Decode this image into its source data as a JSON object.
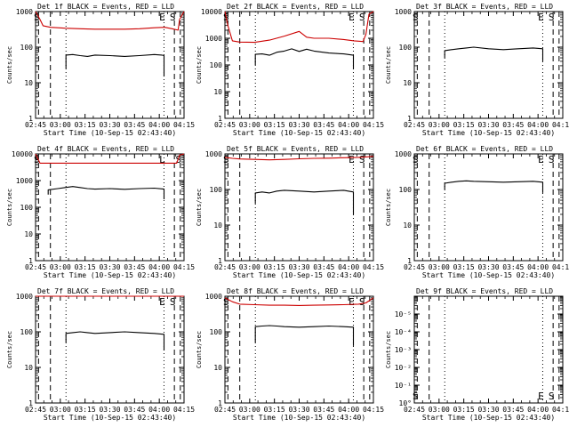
{
  "figure": {
    "background": "#ffffff",
    "axis_color": "#000000"
  },
  "chart_data": [
    {
      "type": "line",
      "title": "Det 1f BLACK = Events, RED = LLD",
      "xlabel": "Start Time (10-Sep-15 02:43:40)",
      "ylabel": "Counts/sec",
      "x_ticks": [
        "02:45",
        "03:00",
        "03:15",
        "03:30",
        "03:45",
        "04:00",
        "04:15"
      ],
      "y_ticks": [
        "1",
        "10",
        "100",
        "1000"
      ],
      "ylim": [
        1,
        1000
      ],
      "y_scale": "log",
      "markers": [
        {
          "label": "S",
          "pos": 0.02,
          "style": "dashed"
        },
        {
          "label": "",
          "pos": 0.1,
          "style": "dashed"
        },
        {
          "label": "",
          "pos": 0.205,
          "style": "dotted"
        },
        {
          "label": "E",
          "pos": 0.865,
          "style": "dotted"
        },
        {
          "label": "S",
          "pos": 0.935,
          "style": "dashed"
        },
        {
          "label": "",
          "pos": 0.975,
          "style": "dashed"
        }
      ],
      "series": [
        {
          "name": "LLD",
          "color": "#cc0000",
          "x": [
            0.0,
            0.03,
            0.05,
            0.1,
            0.2,
            0.3,
            0.4,
            0.5,
            0.6,
            0.7,
            0.8,
            0.87,
            0.92,
            0.96,
            0.97,
            1.0
          ],
          "values": [
            1000,
            600,
            400,
            360,
            340,
            330,
            320,
            320,
            320,
            330,
            350,
            360,
            330,
            300,
            600,
            1000
          ]
        },
        {
          "name": "Events",
          "color": "#000000",
          "x": [
            0.205,
            0.205,
            0.25,
            0.3,
            0.35,
            0.4,
            0.5,
            0.6,
            0.7,
            0.8,
            0.85,
            0.865,
            0.865
          ],
          "values": [
            25,
            60,
            62,
            58,
            55,
            60,
            58,
            55,
            58,
            62,
            60,
            58,
            15
          ]
        }
      ]
    },
    {
      "type": "line",
      "title": "Det 2f BLACK = Events, RED = LLD",
      "xlabel": "Start Time (10-Sep-15 02:43:40)",
      "ylabel": "Counts/sec",
      "x_ticks": [
        "02:45",
        "03:00",
        "03:15",
        "03:30",
        "03:45",
        "04:00",
        "04:15"
      ],
      "y_ticks": [
        "1",
        "10",
        "100",
        "1000",
        "10000"
      ],
      "ylim": [
        1,
        10000
      ],
      "y_scale": "log",
      "markers": [
        {
          "label": "S",
          "pos": 0.02,
          "style": "dashed"
        },
        {
          "label": "",
          "pos": 0.1,
          "style": "dashed"
        },
        {
          "label": "",
          "pos": 0.205,
          "style": "dotted"
        },
        {
          "label": "E",
          "pos": 0.865,
          "style": "dotted"
        },
        {
          "label": "S",
          "pos": 0.935,
          "style": "dashed"
        },
        {
          "label": "",
          "pos": 0.975,
          "style": "dashed"
        }
      ],
      "series": [
        {
          "name": "LLD",
          "color": "#cc0000",
          "x": [
            0.0,
            0.02,
            0.05,
            0.1,
            0.2,
            0.3,
            0.4,
            0.5,
            0.55,
            0.6,
            0.7,
            0.8,
            0.87,
            0.93,
            0.95,
            0.97,
            1.0
          ],
          "values": [
            10000,
            3000,
            800,
            720,
            700,
            850,
            1200,
            1800,
            1100,
            1000,
            1000,
            900,
            800,
            750,
            1400,
            8000,
            10000
          ]
        },
        {
          "name": "Events",
          "color": "#000000",
          "x": [
            0.205,
            0.205,
            0.25,
            0.3,
            0.35,
            0.4,
            0.45,
            0.5,
            0.55,
            0.6,
            0.7,
            0.8,
            0.865,
            0.865
          ],
          "values": [
            100,
            250,
            260,
            230,
            300,
            330,
            400,
            320,
            390,
            330,
            280,
            260,
            230,
            70
          ]
        }
      ]
    },
    {
      "type": "line",
      "title": "Det 3f BLACK = Events, RED = LLD",
      "xlabel": "Start Time (10-Sep-15 02:43:40)",
      "ylabel": "Counts/sec",
      "x_ticks": [
        "02:45",
        "03:00",
        "03:15",
        "03:30",
        "03:45",
        "04:00",
        "04:15"
      ],
      "y_ticks": [
        "1",
        "10",
        "100",
        "1000"
      ],
      "ylim": [
        1,
        1000
      ],
      "y_scale": "log",
      "markers": [
        {
          "label": "S",
          "pos": 0.02,
          "style": "dashed"
        },
        {
          "label": "",
          "pos": 0.1,
          "style": "dashed"
        },
        {
          "label": "",
          "pos": 0.205,
          "style": "dotted"
        },
        {
          "label": "E",
          "pos": 0.865,
          "style": "dotted"
        },
        {
          "label": "S",
          "pos": 0.935,
          "style": "dashed"
        },
        {
          "label": "",
          "pos": 0.975,
          "style": "dashed"
        }
      ],
      "series": [
        {
          "name": "Events",
          "color": "#000000",
          "x": [
            0.205,
            0.205,
            0.25,
            0.3,
            0.35,
            0.4,
            0.5,
            0.6,
            0.7,
            0.8,
            0.865,
            0.865
          ],
          "values": [
            50,
            80,
            85,
            90,
            95,
            100,
            90,
            85,
            90,
            95,
            90,
            40
          ]
        }
      ]
    },
    {
      "type": "line",
      "title": "Det 4f BLACK = Events, RED = LLD",
      "xlabel": "Start Time (10-Sep-15 02:43:40)",
      "ylabel": "Counts/sec",
      "x_ticks": [
        "02:45",
        "03:00",
        "03:15",
        "03:30",
        "03:45",
        "04:00",
        "04:15"
      ],
      "y_ticks": [
        "1",
        "10",
        "100",
        "1000",
        "10000"
      ],
      "ylim": [
        1,
        10000
      ],
      "y_scale": "log",
      "markers": [
        {
          "label": "S",
          "pos": 0.02,
          "style": "dashed"
        },
        {
          "label": "",
          "pos": 0.1,
          "style": "dashed"
        },
        {
          "label": "",
          "pos": 0.205,
          "style": "dotted"
        },
        {
          "label": "L",
          "pos": 0.865,
          "style": "dotted"
        },
        {
          "label": "",
          "pos": 0.935,
          "style": "dashed"
        },
        {
          "label": "S",
          "pos": 0.975,
          "style": "dashed"
        }
      ],
      "series": [
        {
          "name": "LLD",
          "color": "#cc0000",
          "x": [
            0.0,
            0.03,
            0.1,
            0.2,
            0.3,
            0.4,
            0.5,
            0.6,
            0.7,
            0.8,
            0.9,
            0.95,
            0.97,
            1.0
          ],
          "values": [
            10000,
            4500,
            4500,
            4500,
            4500,
            4500,
            4500,
            4500,
            4500,
            4500,
            4500,
            4500,
            9000,
            10000
          ]
        },
        {
          "name": "Events",
          "color": "#000000",
          "x": [
            0.085,
            0.085,
            0.15,
            0.2,
            0.25,
            0.3,
            0.35,
            0.4,
            0.5,
            0.6,
            0.7,
            0.8,
            0.865,
            0.865
          ],
          "values": [
            300,
            450,
            500,
            550,
            600,
            550,
            500,
            480,
            500,
            470,
            500,
            520,
            480,
            200
          ]
        }
      ]
    },
    {
      "type": "line",
      "title": "Det 5f BLACK = Events, RED = LLD",
      "xlabel": "Start Time (10-Sep-15 02:43:40)",
      "ylabel": "Counts/sec",
      "x_ticks": [
        "02:45",
        "03:00",
        "03:15",
        "03:30",
        "03:45",
        "04:00",
        "04:15"
      ],
      "y_ticks": [
        "1",
        "10",
        "100",
        "1000"
      ],
      "ylim": [
        1,
        1000
      ],
      "y_scale": "log",
      "markers": [
        {
          "label": "S",
          "pos": 0.02,
          "style": "dashed"
        },
        {
          "label": "",
          "pos": 0.1,
          "style": "dashed"
        },
        {
          "label": "",
          "pos": 0.205,
          "style": "dotted"
        },
        {
          "label": "E",
          "pos": 0.865,
          "style": "dotted"
        },
        {
          "label": "S",
          "pos": 0.935,
          "style": "dashed"
        },
        {
          "label": "",
          "pos": 0.975,
          "style": "dashed"
        }
      ],
      "series": [
        {
          "name": "LLD",
          "color": "#cc0000",
          "x": [
            0.0,
            0.05,
            0.1,
            0.2,
            0.3,
            0.4,
            0.5,
            0.6,
            0.7,
            0.8,
            0.9,
            0.95,
            1.0
          ],
          "values": [
            800,
            750,
            720,
            700,
            680,
            700,
            730,
            750,
            760,
            780,
            800,
            820,
            850
          ]
        },
        {
          "name": "Events",
          "color": "#000000",
          "x": [
            0.205,
            0.205,
            0.25,
            0.3,
            0.35,
            0.4,
            0.5,
            0.6,
            0.7,
            0.8,
            0.865,
            0.865
          ],
          "values": [
            40,
            80,
            85,
            80,
            90,
            95,
            90,
            85,
            90,
            95,
            85,
            20
          ]
        }
      ]
    },
    {
      "type": "line",
      "title": "Det 6f BLACK = Events, RED = LLD",
      "xlabel": "Start Time (10-Sep-15 02:43:40)",
      "ylabel": "Counts/sec",
      "x_ticks": [
        "02:45",
        "03:00",
        "03:15",
        "03:30",
        "03:45",
        "04:00",
        "04:15"
      ],
      "y_ticks": [
        "1",
        "10",
        "100",
        "1000"
      ],
      "ylim": [
        1,
        1000
      ],
      "y_scale": "log",
      "markers": [
        {
          "label": "S",
          "pos": 0.02,
          "style": "dashed"
        },
        {
          "label": "",
          "pos": 0.1,
          "style": "dashed"
        },
        {
          "label": "",
          "pos": 0.205,
          "style": "dotted"
        },
        {
          "label": "E",
          "pos": 0.865,
          "style": "dotted"
        },
        {
          "label": "S",
          "pos": 0.935,
          "style": "dashed"
        },
        {
          "label": "",
          "pos": 0.975,
          "style": "dashed"
        }
      ],
      "series": [
        {
          "name": "Events",
          "color": "#000000",
          "x": [
            0.205,
            0.205,
            0.25,
            0.3,
            0.35,
            0.4,
            0.5,
            0.6,
            0.7,
            0.8,
            0.865,
            0.865
          ],
          "values": [
            100,
            150,
            160,
            170,
            175,
            170,
            165,
            160,
            165,
            170,
            160,
            80
          ]
        }
      ]
    },
    {
      "type": "line",
      "title": "Det 7f BLACK = Events, RED = LLD",
      "xlabel": "Start Time (10-Sep-15 02:43:40)",
      "ylabel": "Counts/sec",
      "x_ticks": [
        "02:45",
        "03:00",
        "03:15",
        "03:30",
        "03:45",
        "04:00",
        "04:15"
      ],
      "y_ticks": [
        "1",
        "10",
        "100",
        "1000"
      ],
      "ylim": [
        1,
        1000
      ],
      "y_scale": "log",
      "markers": [
        {
          "label": "",
          "pos": 0.02,
          "style": "dashed"
        },
        {
          "label": "",
          "pos": 0.1,
          "style": "dashed"
        },
        {
          "label": "",
          "pos": 0.205,
          "style": "dotted"
        },
        {
          "label": "E",
          "pos": 0.865,
          "style": "dotted"
        },
        {
          "label": "S",
          "pos": 0.935,
          "style": "dashed"
        },
        {
          "label": "",
          "pos": 0.975,
          "style": "dashed"
        }
      ],
      "series": [
        {
          "name": "LLD",
          "color": "#cc0000",
          "x": [
            0.0,
            0.1,
            0.2,
            0.3,
            0.4,
            0.5,
            0.6,
            0.7,
            0.8,
            0.9,
            1.0
          ],
          "values": [
            1000,
            1000,
            1000,
            1000,
            1000,
            1000,
            1000,
            1000,
            1000,
            1000,
            1000
          ]
        },
        {
          "name": "Events",
          "color": "#000000",
          "x": [
            0.205,
            0.205,
            0.25,
            0.3,
            0.35,
            0.4,
            0.5,
            0.6,
            0.7,
            0.8,
            0.865,
            0.865
          ],
          "values": [
            50,
            90,
            95,
            100,
            95,
            90,
            95,
            100,
            95,
            90,
            85,
            30
          ]
        }
      ]
    },
    {
      "type": "line",
      "title": "Det 8f BLACK = Events, RED = LLD",
      "xlabel": "Start Time (10-Sep-15 02:43:40)",
      "ylabel": "Counts/sec",
      "x_ticks": [
        "02:45",
        "03:00",
        "03:15",
        "03:30",
        "03:45",
        "04:00",
        "04:15"
      ],
      "y_ticks": [
        "1",
        "10",
        "100",
        "1000"
      ],
      "ylim": [
        1,
        1000
      ],
      "y_scale": "log",
      "markers": [
        {
          "label": "S",
          "pos": 0.02,
          "style": "dashed"
        },
        {
          "label": "",
          "pos": 0.1,
          "style": "dashed"
        },
        {
          "label": "",
          "pos": 0.205,
          "style": "dotted"
        },
        {
          "label": "E",
          "pos": 0.865,
          "style": "dotted"
        },
        {
          "label": "S",
          "pos": 0.935,
          "style": "dashed"
        },
        {
          "label": "",
          "pos": 0.975,
          "style": "dashed"
        }
      ],
      "series": [
        {
          "name": "LLD",
          "color": "#cc0000",
          "x": [
            0.0,
            0.05,
            0.1,
            0.2,
            0.3,
            0.4,
            0.5,
            0.6,
            0.7,
            0.8,
            0.9,
            0.95,
            1.0
          ],
          "values": [
            900,
            700,
            600,
            580,
            560,
            560,
            550,
            560,
            570,
            580,
            600,
            650,
            900
          ]
        },
        {
          "name": "Events",
          "color": "#000000",
          "x": [
            0.205,
            0.205,
            0.25,
            0.3,
            0.35,
            0.4,
            0.5,
            0.6,
            0.7,
            0.8,
            0.865,
            0.865
          ],
          "values": [
            50,
            140,
            145,
            150,
            145,
            140,
            135,
            140,
            145,
            140,
            135,
            40
          ]
        }
      ]
    },
    {
      "type": "line",
      "title": "Det 9f BLACK = Events, RED = LLD",
      "xlabel": "Start Time (10-Sep-15 02:43:40)",
      "ylabel": "Counts/sec",
      "x_ticks": [
        "02:45",
        "03:00",
        "03:15",
        "03:30",
        "03:45",
        "04:00",
        "04:15"
      ],
      "y_ticks": [
        "10°",
        "10⁻¹",
        "10⁻²",
        "10⁻³",
        "10⁻⁴",
        "10⁻⁵"
      ],
      "ylim": [
        1,
        1000000
      ],
      "y_scale": "log",
      "markers": [
        {
          "label": "S",
          "pos": 0.02,
          "style": "dashed"
        },
        {
          "label": "",
          "pos": 0.1,
          "style": "dashed"
        },
        {
          "label": "",
          "pos": 0.205,
          "style": "dotted"
        },
        {
          "label": "E",
          "pos": 0.865,
          "style": "dotted"
        },
        {
          "label": "S",
          "pos": 0.935,
          "style": "dashed"
        },
        {
          "label": "",
          "pos": 0.975,
          "style": "dashed"
        }
      ],
      "marker_label_position": "bottom",
      "series": []
    }
  ]
}
